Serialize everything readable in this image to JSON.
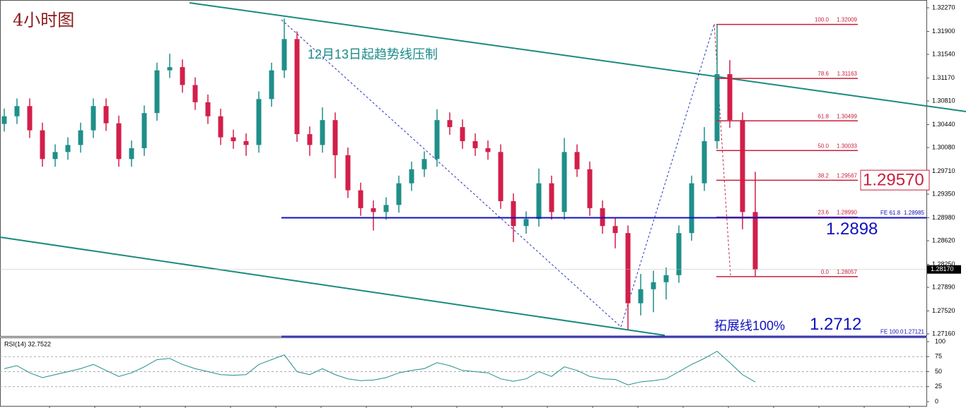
{
  "chart_data": {
    "type": "candlestick",
    "title": "4小时图",
    "annotation": "12月13日起趋势线压制",
    "ylim": [
      1.27127,
      1.32392
    ],
    "yticks": [
      {
        "value": 1.3227,
        "label": "1.32270"
      },
      {
        "value": 1.319,
        "label": "1.31900"
      },
      {
        "value": 1.3154,
        "label": "1.31540"
      },
      {
        "value": 1.3117,
        "label": "1.31170"
      },
      {
        "value": 1.3081,
        "label": "1.30810"
      },
      {
        "value": 1.3044,
        "label": "1.30440"
      },
      {
        "value": 1.3008,
        "label": "1.30080"
      },
      {
        "value": 1.2971,
        "label": "1.29710"
      },
      {
        "value": 1.2935,
        "label": "1.29350"
      },
      {
        "value": 1.2898,
        "label": "1.28980"
      },
      {
        "value": 1.2862,
        "label": "1.28620"
      },
      {
        "value": 1.2825,
        "label": "1.28250"
      },
      {
        "value": 1.2789,
        "label": "1.27890"
      },
      {
        "value": 1.2752,
        "label": "1.27520"
      },
      {
        "value": 1.2716,
        "label": "1.27160"
      }
    ],
    "up_color": "#1f8f8a",
    "down_color": "#d21f4a",
    "candles": [
      [
        1.3045,
        1.3069,
        1.3033,
        1.3057
      ],
      [
        1.3057,
        1.3085,
        1.3045,
        1.3073
      ],
      [
        1.3073,
        1.3085,
        1.3023,
        1.3035
      ],
      [
        1.3035,
        1.3047,
        1.2978,
        1.299
      ],
      [
        1.299,
        1.3013,
        1.2978,
        1.3001
      ],
      [
        1.3001,
        1.3024,
        1.2989,
        1.3012
      ],
      [
        1.3012,
        1.3047,
        1.3,
        1.3035
      ],
      [
        1.3035,
        1.3085,
        1.3023,
        1.3073
      ],
      [
        1.3073,
        1.3085,
        1.3034,
        1.3046
      ],
      [
        1.3046,
        1.3058,
        1.2978,
        1.299
      ],
      [
        1.299,
        1.3019,
        1.2978,
        1.3007
      ],
      [
        1.3007,
        1.3074,
        1.2995,
        1.3062
      ],
      [
        1.3062,
        1.3141,
        1.305,
        1.3129
      ],
      [
        1.3129,
        1.3155,
        1.3117,
        1.3134
      ],
      [
        1.3134,
        1.3146,
        1.3094,
        1.3106
      ],
      [
        1.3106,
        1.3118,
        1.3067,
        1.3079
      ],
      [
        1.3079,
        1.3091,
        1.3045,
        1.3057
      ],
      [
        1.3057,
        1.3069,
        1.3012,
        1.3024
      ],
      [
        1.3024,
        1.3036,
        1.3006,
        1.3018
      ],
      [
        1.3018,
        1.303,
        1.2995,
        1.3012
      ],
      [
        1.3012,
        1.3096,
        1.3,
        1.3084
      ],
      [
        1.3084,
        1.3141,
        1.3072,
        1.3129
      ],
      [
        1.3129,
        1.321,
        1.3117,
        1.3178
      ],
      [
        1.3178,
        1.319,
        1.3017,
        1.3029
      ],
      [
        1.3029,
        1.3041,
        1.2995,
        1.3012
      ],
      [
        1.3012,
        1.3071,
        1.3,
        1.3051
      ],
      [
        1.3051,
        1.3063,
        1.296,
        1.2996
      ],
      [
        1.2996,
        1.3008,
        1.2929,
        1.2941
      ],
      [
        1.2941,
        1.2953,
        1.2901,
        1.2913
      ],
      [
        1.2913,
        1.2925,
        1.2878,
        1.2907
      ],
      [
        1.2907,
        1.293,
        1.2895,
        1.2918
      ],
      [
        1.2918,
        1.2964,
        1.2906,
        1.2952
      ],
      [
        1.2952,
        1.2986,
        1.294,
        1.2974
      ],
      [
        1.2974,
        1.3002,
        1.2962,
        1.299
      ],
      [
        1.299,
        1.3068,
        1.2978,
        1.3051
      ],
      [
        1.3051,
        1.3063,
        1.3028,
        1.304
      ],
      [
        1.304,
        1.3052,
        1.3006,
        1.3018
      ],
      [
        1.3018,
        1.303,
        1.2995,
        1.3007
      ],
      [
        1.3007,
        1.3019,
        1.2989,
        1.3001
      ],
      [
        1.3001,
        1.3013,
        1.2912,
        1.2924
      ],
      [
        1.2924,
        1.2936,
        1.286,
        1.2885
      ],
      [
        1.2885,
        1.2908,
        1.2873,
        1.2896
      ],
      [
        1.2896,
        1.2975,
        1.2884,
        1.2952
      ],
      [
        1.2952,
        1.2964,
        1.2895,
        1.2907
      ],
      [
        1.2907,
        1.3023,
        1.2895,
        1.3001
      ],
      [
        1.3001,
        1.3013,
        1.2962,
        1.2974
      ],
      [
        1.2974,
        1.2986,
        1.2901,
        1.2913
      ],
      [
        1.2913,
        1.2925,
        1.2873,
        1.2885
      ],
      [
        1.2885,
        1.2897,
        1.285,
        1.2874
      ],
      [
        1.2874,
        1.2886,
        1.2723,
        1.2764
      ],
      [
        1.2764,
        1.281,
        1.2745,
        1.2786
      ],
      [
        1.2786,
        1.2815,
        1.275,
        1.2797
      ],
      [
        1.2797,
        1.282,
        1.277,
        1.2808
      ],
      [
        1.2808,
        1.2886,
        1.2796,
        1.2874
      ],
      [
        1.2874,
        1.2964,
        1.2862,
        1.2952
      ],
      [
        1.2952,
        1.304,
        1.294,
        1.3018
      ],
      [
        1.3018,
        1.3201,
        1.3006,
        1.3123
      ],
      [
        1.3123,
        1.3145,
        1.3039,
        1.3051
      ],
      [
        1.3051,
        1.3063,
        1.288,
        1.2907
      ],
      [
        1.2907,
        1.297,
        1.2806,
        1.2817
      ]
    ],
    "current_price": {
      "value": 1.2817,
      "label": "1.28170"
    },
    "fib_color": "#c8203c",
    "fib_levels": [
      {
        "level": "100.0",
        "price": 1.32009
      },
      {
        "level": "78.6",
        "price": 1.31163
      },
      {
        "level": "61.8",
        "price": 1.30499
      },
      {
        "level": "50.0",
        "price": 1.30033
      },
      {
        "level": "38.2",
        "price": 1.29567
      },
      {
        "level": "23.6",
        "price": {
          "value": 1.2899,
          "label": "1.28990"
        }
      },
      {
        "level": "0.0",
        "price": 1.28057
      }
    ],
    "fe_levels": [
      {
        "text": "FE 61.8",
        "price": 1.28985
      },
      {
        "text": "FE 100.0",
        "price": 1.27121
      }
    ],
    "resistance_label": {
      "value": 1.2957,
      "label": "1.29570"
    },
    "blue_levels": [
      {
        "value": 1.2898
      },
      {
        "value": 1.2712,
        "note": "拓展线100%"
      }
    ],
    "rsi": {
      "title": "RSI(14) 32.7522",
      "ylim": [
        0,
        100
      ],
      "yticks": [
        100,
        75,
        50,
        25,
        0
      ],
      "color": "#1f8f8a",
      "values": [
        55,
        60,
        48,
        40,
        45,
        50,
        55,
        62,
        52,
        42,
        48,
        58,
        70,
        72,
        62,
        55,
        50,
        45,
        44,
        45,
        62,
        70,
        78,
        50,
        45,
        55,
        45,
        38,
        35,
        36,
        40,
        48,
        52,
        55,
        65,
        60,
        52,
        50,
        48,
        38,
        34,
        38,
        50,
        42,
        58,
        52,
        42,
        38,
        37,
        28,
        33,
        35,
        38,
        50,
        62,
        72,
        84,
        65,
        45,
        32.7522
      ]
    }
  }
}
